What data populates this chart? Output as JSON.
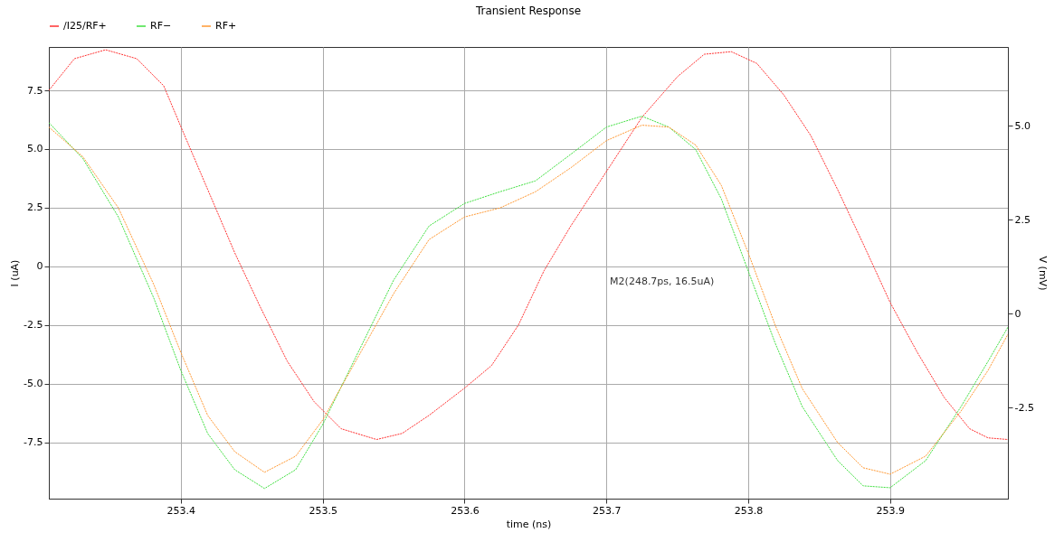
{
  "chart_data": {
    "type": "line",
    "title": "Transient Response",
    "xlabel": "time (ns)",
    "ylabel": "I (uA)",
    "y2label": "V (mV)",
    "xlim": [
      253.307,
      253.983
    ],
    "xticks": [
      253.4,
      253.5,
      253.6,
      253.7,
      253.8,
      253.9
    ],
    "ylim": [
      -9.9,
      9.35
    ],
    "yticks": [
      {
        "value": 7.5,
        "label": "7.5"
      },
      {
        "value": 5,
        "label": "5.0"
      },
      {
        "value": 2.5,
        "label": "2.5"
      },
      0,
      {
        "value": -2.5,
        "label": "-2.5"
      },
      {
        "value": -5,
        "label": "-5.0"
      },
      {
        "value": -7.5,
        "label": "-7.5"
      }
    ],
    "y2lim": [
      -4.92,
      7.09
    ],
    "y2ticks": [
      {
        "value": 5,
        "label": "5.0"
      },
      {
        "value": 2.5,
        "label": "2.5"
      },
      0,
      {
        "value": -2.5,
        "label": "-2.5"
      }
    ],
    "grid": true,
    "legend": "top left",
    "line_style": "dotted",
    "annotations": [
      "M2(248.7ps, 16.5uA)"
    ],
    "series": [
      {
        "name": "/I25/RF+",
        "color": "#ff3030",
        "x": [
          253.307,
          253.325,
          253.347,
          253.369,
          253.388,
          253.4,
          253.419,
          253.438,
          253.456,
          253.475,
          253.494,
          253.513,
          253.538,
          253.556,
          253.575,
          253.6,
          253.619,
          253.638,
          253.656,
          253.675,
          253.7,
          253.725,
          253.75,
          253.769,
          253.788,
          253.806,
          253.825,
          253.844,
          253.863,
          253.881,
          253.9,
          253.919,
          253.938,
          253.956,
          253.969,
          253.983
        ],
        "values": [
          7.5,
          8.85,
          9.23,
          8.85,
          7.69,
          5.96,
          3.27,
          0.58,
          -1.73,
          -4.04,
          -5.77,
          -6.92,
          -7.38,
          -7.12,
          -6.35,
          -5.19,
          -4.23,
          -2.5,
          -0.19,
          1.73,
          4.04,
          6.35,
          8.08,
          9.04,
          9.15,
          8.65,
          7.31,
          5.58,
          3.27,
          0.96,
          -1.54,
          -3.65,
          -5.58,
          -6.92,
          -7.31,
          -7.38
        ]
      },
      {
        "name": "RF−",
        "color": "#40e040",
        "axis": "y2",
        "x": [
          253.307,
          253.331,
          253.356,
          253.381,
          253.4,
          253.419,
          253.438,
          253.459,
          253.481,
          253.5,
          253.525,
          253.55,
          253.575,
          253.6,
          253.625,
          253.65,
          253.675,
          253.7,
          253.725,
          253.744,
          253.763,
          253.781,
          253.8,
          253.819,
          253.838,
          253.863,
          253.881,
          253.9,
          253.925,
          253.95,
          253.969,
          253.983
        ],
        "values": [
          5.08,
          4.12,
          2.57,
          0.41,
          -1.51,
          -3.19,
          -4.15,
          -4.65,
          -4.15,
          -2.95,
          -1.03,
          0.89,
          2.33,
          2.93,
          3.24,
          3.53,
          4.24,
          4.96,
          5.25,
          4.96,
          4.36,
          3.05,
          1.13,
          -0.79,
          -2.47,
          -3.91,
          -4.58,
          -4.63,
          -3.91,
          -2.47,
          -1.27,
          -0.36
        ]
      },
      {
        "name": "RF+",
        "color": "#ff9933",
        "axis": "y2",
        "x": [
          253.307,
          253.331,
          253.356,
          253.381,
          253.4,
          253.419,
          253.438,
          253.459,
          253.481,
          253.5,
          253.525,
          253.55,
          253.575,
          253.6,
          253.625,
          253.65,
          253.675,
          253.7,
          253.725,
          253.744,
          253.763,
          253.781,
          253.8,
          253.819,
          253.838,
          253.863,
          253.881,
          253.9,
          253.925,
          253.95,
          253.969,
          253.983
        ],
        "values": [
          4.96,
          4.17,
          2.81,
          0.77,
          -1.03,
          -2.71,
          -3.67,
          -4.22,
          -3.79,
          -2.83,
          -1.15,
          0.53,
          1.97,
          2.57,
          2.81,
          3.24,
          3.88,
          4.6,
          5.01,
          4.96,
          4.48,
          3.41,
          1.61,
          -0.31,
          -1.99,
          -3.43,
          -4.1,
          -4.27,
          -3.79,
          -2.59,
          -1.51,
          -0.55
        ]
      }
    ]
  }
}
